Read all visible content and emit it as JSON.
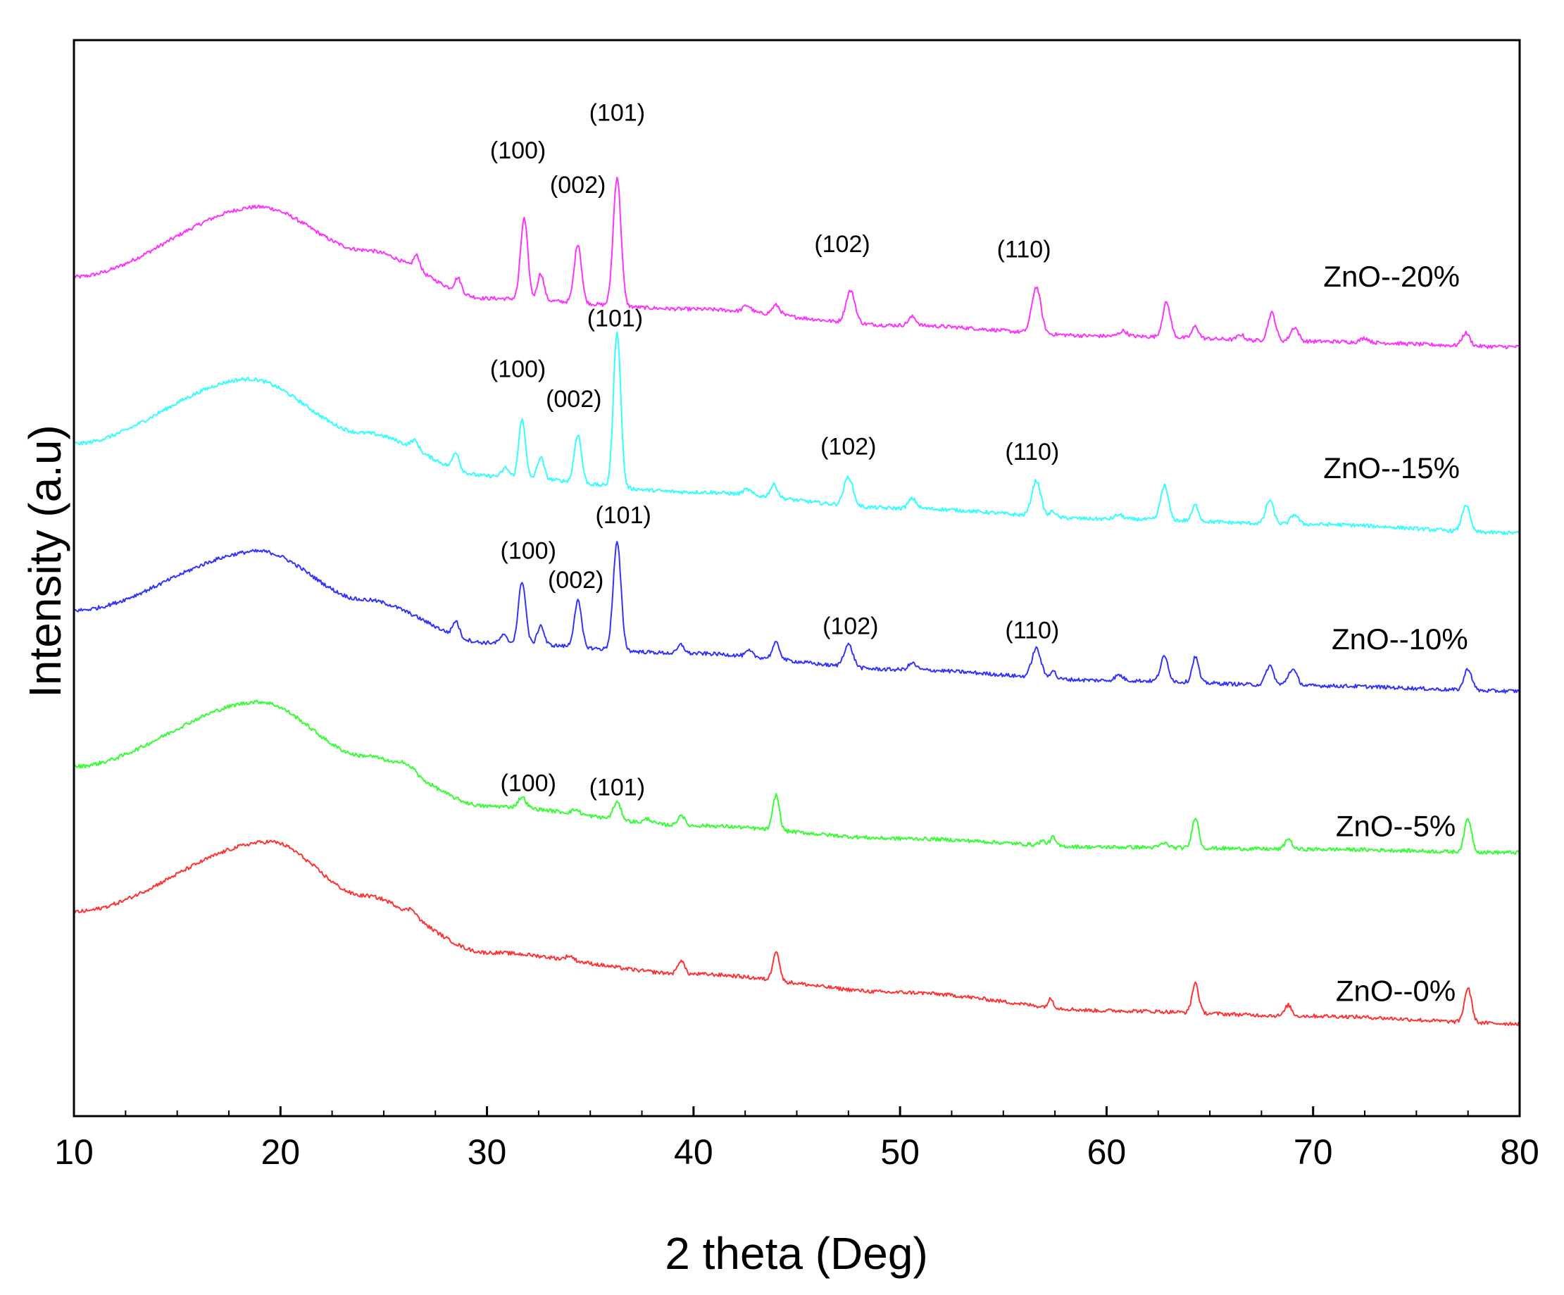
{
  "chart_data": {
    "type": "line",
    "title": "",
    "xlabel": "2 theta (Deg)",
    "ylabel": "Intensity (a.u)",
    "xlim": [
      10,
      80
    ],
    "ylim": [
      0,
      100
    ],
    "x_ticks": [
      10,
      20,
      30,
      40,
      50,
      60,
      70,
      80
    ],
    "x_tick_labels": [
      "10",
      "20",
      "30",
      "40",
      "50",
      "60",
      "70",
      "80"
    ],
    "y_ticks_shown": false,
    "legend": "inline labels at right end of each curve",
    "series": [
      {
        "name": "ZnO--20%",
        "color": "#ff33ff",
        "baseline": [
          [
            10,
            78
          ],
          [
            19,
            84.5
          ],
          [
            24,
            80.5
          ],
          [
            30,
            76
          ],
          [
            40,
            75
          ],
          [
            50,
            73.5
          ],
          [
            60,
            72.5
          ],
          [
            70,
            72
          ],
          [
            80,
            71.5
          ]
        ],
        "peaks": [
          [
            26.6,
            1.3,
            0.25
          ],
          [
            28.6,
            1.3,
            0.25
          ],
          [
            31.8,
            7.5,
            0.28
          ],
          [
            32.6,
            2.5,
            0.25
          ],
          [
            34.4,
            5.5,
            0.28
          ],
          [
            36.3,
            12,
            0.3
          ],
          [
            42.6,
            0.6,
            0.3
          ],
          [
            44,
            0.9,
            0.3
          ],
          [
            47.6,
            3,
            0.35
          ],
          [
            50.6,
            0.8,
            0.3
          ],
          [
            56.6,
            4.3,
            0.35
          ],
          [
            60.8,
            0.5,
            0.3
          ],
          [
            62.9,
            3.2,
            0.3
          ],
          [
            64.3,
            1.1,
            0.25
          ],
          [
            66.5,
            0.5,
            0.25
          ],
          [
            68,
            2.6,
            0.3
          ],
          [
            69.1,
            1.3,
            0.3
          ],
          [
            72.5,
            0.4,
            0.3
          ],
          [
            77.4,
            1.2,
            0.3
          ]
        ]
      },
      {
        "name": "ZnO--15%",
        "color": "#33ffff",
        "baseline": [
          [
            10,
            62.5
          ],
          [
            18.5,
            68.5
          ],
          [
            24,
            63.5
          ],
          [
            30,
            59.5
          ],
          [
            40,
            58
          ],
          [
            50,
            56.5
          ],
          [
            60,
            55.5
          ],
          [
            70,
            55
          ],
          [
            80,
            54.2
          ]
        ],
        "peaks": [
          [
            26.5,
            0.8,
            0.3
          ],
          [
            28.5,
            1.6,
            0.25
          ],
          [
            30.9,
            0.8,
            0.25
          ],
          [
            31.7,
            5.5,
            0.25
          ],
          [
            32.6,
            2,
            0.25
          ],
          [
            34.4,
            4.5,
            0.28
          ],
          [
            36.3,
            14.5,
            0.28
          ],
          [
            42.6,
            0.5,
            0.3
          ],
          [
            43.9,
            1.2,
            0.28
          ],
          [
            47.5,
            2.7,
            0.35
          ],
          [
            50.6,
            0.9,
            0.3
          ],
          [
            56.6,
            3.3,
            0.35
          ],
          [
            57.4,
            0.6,
            0.2
          ],
          [
            60.6,
            0.4,
            0.3
          ],
          [
            62.8,
            3.2,
            0.3
          ],
          [
            64.3,
            1.5,
            0.25
          ],
          [
            67.9,
            2.2,
            0.3
          ],
          [
            69.1,
            0.9,
            0.3
          ],
          [
            77.4,
            2.5,
            0.3
          ]
        ]
      },
      {
        "name": "ZnO--10%",
        "color": "#3333ff",
        "baseline": [
          [
            10,
            47
          ],
          [
            19,
            52.5
          ],
          [
            24,
            48
          ],
          [
            30,
            44
          ],
          [
            40,
            43
          ],
          [
            50,
            41.5
          ],
          [
            60,
            40.5
          ],
          [
            70,
            40
          ],
          [
            80,
            39.5
          ]
        ],
        "peaks": [
          [
            28.5,
            1.4,
            0.25
          ],
          [
            30.8,
            0.7,
            0.25
          ],
          [
            31.7,
            5.8,
            0.28
          ],
          [
            32.6,
            1.8,
            0.25
          ],
          [
            34.4,
            4.3,
            0.28
          ],
          [
            36.3,
            10,
            0.3
          ],
          [
            39.4,
            0.8,
            0.25
          ],
          [
            42.7,
            0.5,
            0.25
          ],
          [
            44,
            1.5,
            0.28
          ],
          [
            47.5,
            2.1,
            0.35
          ],
          [
            50.6,
            0.6,
            0.3
          ],
          [
            56.6,
            2.7,
            0.35
          ],
          [
            57.4,
            0.8,
            0.2
          ],
          [
            60.6,
            0.5,
            0.3
          ],
          [
            62.8,
            2.3,
            0.3
          ],
          [
            64.3,
            2.4,
            0.25
          ],
          [
            67.9,
            1.8,
            0.3
          ],
          [
            69,
            1.5,
            0.35
          ],
          [
            77.5,
            2,
            0.3
          ]
        ]
      },
      {
        "name": "ZnO--5%",
        "color": "#33ff33",
        "baseline": [
          [
            10,
            32.5
          ],
          [
            19,
            38.5
          ],
          [
            24,
            33.5
          ],
          [
            30,
            28.8
          ],
          [
            40,
            27
          ],
          [
            50,
            25.8
          ],
          [
            60,
            25
          ],
          [
            70,
            24.8
          ],
          [
            80,
            24.5
          ]
        ],
        "peaks": [
          [
            25.9,
            0.6,
            0.3
          ],
          [
            26.4,
            0.5,
            0.3
          ],
          [
            31.7,
            1,
            0.3
          ],
          [
            34.3,
            0.4,
            0.3
          ],
          [
            36.3,
            1.6,
            0.3
          ],
          [
            37.8,
            0.4,
            0.3
          ],
          [
            39.4,
            1,
            0.25
          ],
          [
            44,
            3.3,
            0.25
          ],
          [
            56.9,
            0.4,
            0.25
          ],
          [
            57.4,
            0.8,
            0.2
          ],
          [
            62.8,
            0.4,
            0.3
          ],
          [
            64.3,
            2.9,
            0.25
          ],
          [
            68.8,
            1,
            0.25
          ],
          [
            77.5,
            3.1,
            0.28
          ]
        ]
      },
      {
        "name": "ZnO--0%",
        "color": "#ff3333",
        "baseline": [
          [
            10,
            19
          ],
          [
            19.5,
            25.5
          ],
          [
            24,
            20.5
          ],
          [
            30,
            15.2
          ],
          [
            40,
            13.2
          ],
          [
            50,
            11.5
          ],
          [
            60,
            9.8
          ],
          [
            70,
            9.3
          ],
          [
            80,
            8.6
          ]
        ],
        "peaks": [
          [
            26.4,
            0.6,
            0.3
          ],
          [
            34,
            0.4,
            0.3
          ],
          [
            39.4,
            1.3,
            0.25
          ],
          [
            44,
            2.8,
            0.25
          ],
          [
            57.3,
            0.8,
            0.2
          ],
          [
            64.3,
            2.8,
            0.25
          ],
          [
            68.8,
            1,
            0.25
          ],
          [
            77.5,
            3.2,
            0.28
          ]
        ]
      }
    ],
    "annotations": [
      {
        "text": "(101)",
        "x": 36.3,
        "y": 92.5
      },
      {
        "text": "(100)",
        "x": 31.5,
        "y": 89
      },
      {
        "text": "(002)",
        "x": 34.4,
        "y": 85.8
      },
      {
        "text": "(102)",
        "x": 47.2,
        "y": 80.3
      },
      {
        "text": "(110)",
        "x": 56.0,
        "y": 79.8
      },
      {
        "text": "ZnO--20%",
        "x": 73.8,
        "y": 77.1
      },
      {
        "text": "(101)",
        "x": 36.2,
        "y": 73.4
      },
      {
        "text": "(100)",
        "x": 31.5,
        "y": 68.7
      },
      {
        "text": "(002)",
        "x": 34.2,
        "y": 65.9
      },
      {
        "text": "(102)",
        "x": 47.5,
        "y": 61.5
      },
      {
        "text": "(110)",
        "x": 56.4,
        "y": 61.0
      },
      {
        "text": "ZnO--15%",
        "x": 73.8,
        "y": 59.3
      },
      {
        "text": "(101)",
        "x": 36.6,
        "y": 55.1
      },
      {
        "text": "(100)",
        "x": 32.0,
        "y": 51.8
      },
      {
        "text": "(002)",
        "x": 34.3,
        "y": 49.1
      },
      {
        "text": "(102)",
        "x": 47.6,
        "y": 44.8
      },
      {
        "text": "(110)",
        "x": 56.4,
        "y": 44.4
      },
      {
        "text": "ZnO--10%",
        "x": 74.2,
        "y": 43.4
      },
      {
        "text": "(100)",
        "x": 32.0,
        "y": 30.2
      },
      {
        "text": "(101)",
        "x": 36.3,
        "y": 29.8
      },
      {
        "text": "ZnO--5%",
        "x": 74.0,
        "y": 26.0
      },
      {
        "text": "ZnO--0%",
        "x": 74.0,
        "y": 10.7
      }
    ]
  }
}
